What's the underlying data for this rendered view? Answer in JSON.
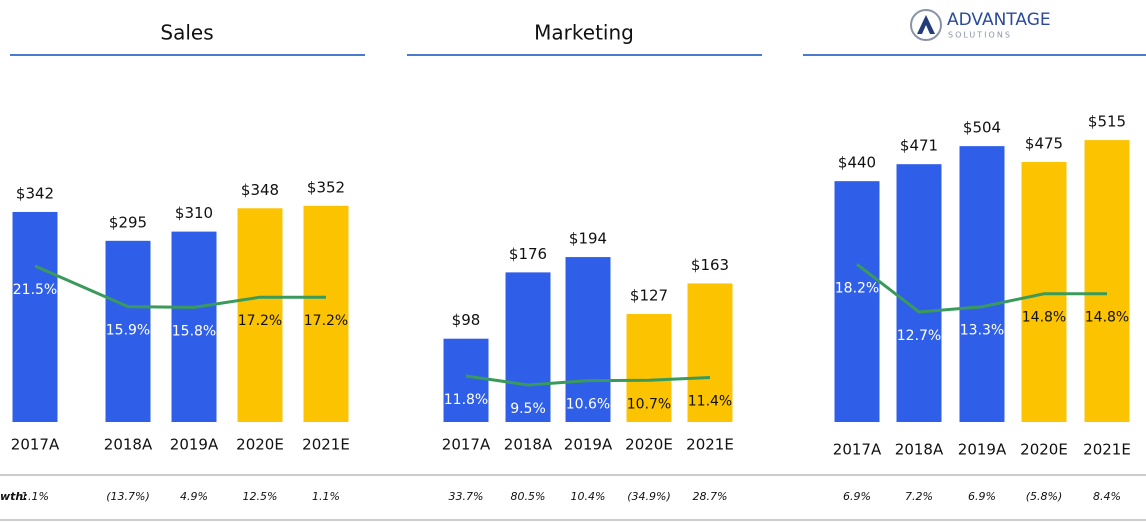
{
  "chart_data": [
    {
      "type": "bar",
      "title": "Sales",
      "categories": [
        "2017A",
        "2018A",
        "2019A",
        "2020E",
        "2021E"
      ],
      "values": [
        342,
        295,
        310,
        348,
        352
      ],
      "value_labels": [
        "$342",
        "$295",
        "$310",
        "$348",
        "$352"
      ],
      "colors": [
        "#2f5fe8",
        "#2f5fe8",
        "#2f5fe8",
        "#fcc300",
        "#fcc300"
      ],
      "ylim": [
        0,
        508
      ],
      "line": {
        "values": [
          21.5,
          15.9,
          15.8,
          17.2,
          17.2
        ],
        "value_labels": [
          "21.5%",
          "15.9%",
          "15.8%",
          "17.2%",
          "17.2%"
        ],
        "color": "#3a9a5b",
        "axis": "y2"
      },
      "y2lim": [
        0,
        43
      ],
      "growth": {
        "values": [
          1.1,
          -13.7,
          4.9,
          12.5,
          1.1
        ],
        "value_labels": [
          "1.1%",
          "(13.7%)",
          "4.9%",
          "12.5%",
          "1.1%"
        ]
      }
    },
    {
      "type": "bar",
      "title": "Marketing",
      "categories": [
        "2017A",
        "2018A",
        "2019A",
        "2020E",
        "2021E"
      ],
      "values": [
        98,
        176,
        194,
        127,
        163
      ],
      "value_labels": [
        "$98",
        "$176",
        "$194",
        "$127",
        "$163"
      ],
      "colors": [
        "#2f5fe8",
        "#2f5fe8",
        "#2f5fe8",
        "#fcc300",
        "#fcc300"
      ],
      "ylim": [
        0,
        367
      ],
      "line": {
        "values": [
          11.8,
          9.5,
          10.6,
          10.7,
          11.4
        ],
        "value_labels": [
          "11.8%",
          "9.5%",
          "10.6%",
          "10.7%",
          "11.4%"
        ],
        "color": "#3a9a5b",
        "axis": "y2"
      },
      "y2lim": [
        0,
        80
      ],
      "growth": {
        "values": [
          33.7,
          80.5,
          10.4,
          -34.9,
          28.7
        ],
        "value_labels": [
          "33.7%",
          "80.5%",
          "10.4%",
          "(34.9%)",
          "28.7%"
        ]
      }
    },
    {
      "type": "bar",
      "logo": {
        "name": "ADVANTAGE",
        "tagline": "SOLUTIONS"
      },
      "categories": [
        "2017A",
        "2018A",
        "2019A",
        "2020E",
        "2021E"
      ],
      "values": [
        440,
        471,
        504,
        475,
        515
      ],
      "value_labels": [
        "$440",
        "$471",
        "$504",
        "$475",
        "$515"
      ],
      "colors": [
        "#2f5fe8",
        "#2f5fe8",
        "#2f5fe8",
        "#fcc300",
        "#fcc300"
      ],
      "ylim": [
        0,
        570
      ],
      "line": {
        "values": [
          18.2,
          12.7,
          13.3,
          14.8,
          14.8
        ],
        "value_labels": [
          "18.2%",
          "12.7%",
          "13.3%",
          "14.8%",
          "14.8%"
        ],
        "color": "#3a9a5b",
        "axis": "y2"
      },
      "y2lim": [
        0,
        36
      ],
      "growth": {
        "values": [
          6.9,
          7.2,
          6.9,
          -5.8,
          8.4
        ],
        "value_labels": [
          "6.9%",
          "7.2%",
          "6.9%",
          "(5.8%)",
          "8.4%"
        ]
      }
    }
  ],
  "growth_label": "wth:"
}
